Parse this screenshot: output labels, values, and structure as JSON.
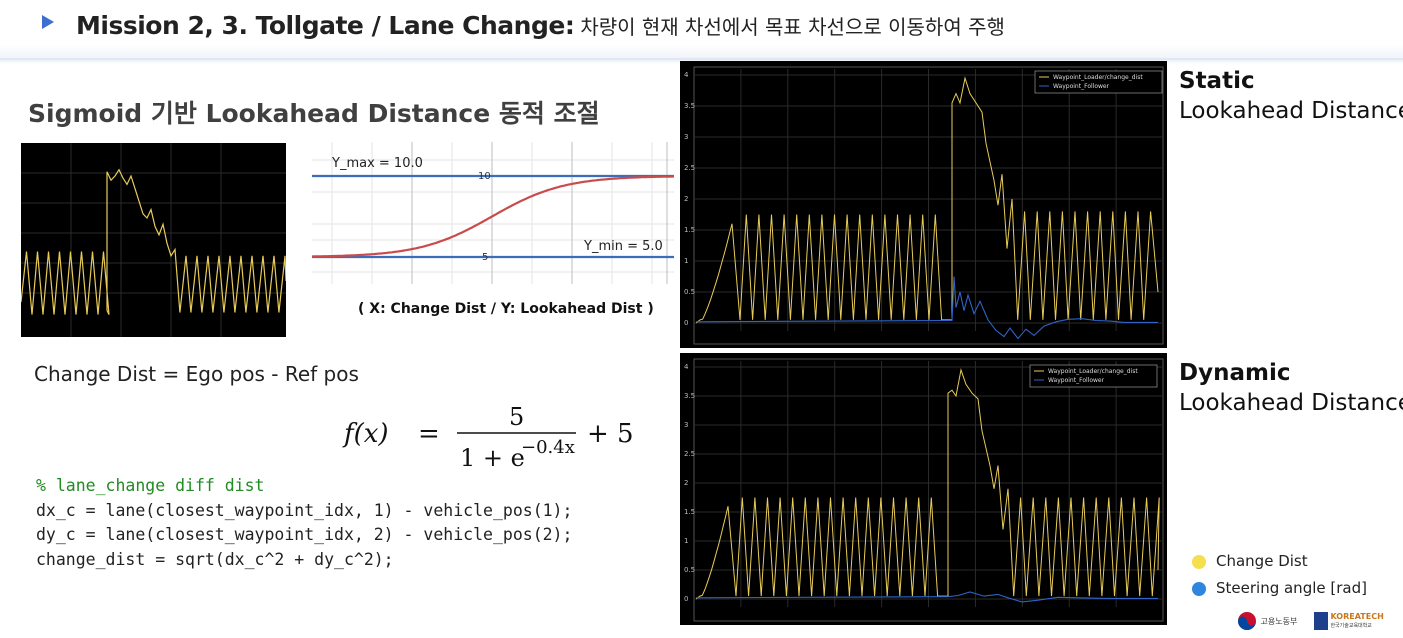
{
  "header": {
    "title_main": "Mission 2, 3. Tollgate / Lane Change:",
    "title_sub": "차량이 현재 차선에서 목표 차선으로 이동하여 주행"
  },
  "section_title": "Sigmoid 기반 Lookahead Distance 동적 조절",
  "sigmoid_plot": {
    "ymax_label": "Y_max = 10.0",
    "ymin_label": "Y_min = 5.0",
    "tick_top": "10",
    "tick_bottom": "5",
    "caption": "( X: Change Dist / Y: Lookahead Dist )"
  },
  "equation_text": "Change Dist = Ego pos - Ref pos",
  "formula": {
    "lhs": "f(x)",
    "equals": "=",
    "numerator": "5",
    "denominator_base": "1 + e",
    "exponent": "−0.4x",
    "plus": "+ 5"
  },
  "code": {
    "comment": "% lane_change diff dist",
    "line1": "dx_c = lane(closest_waypoint_idx, 1) - vehicle_pos(1);",
    "line2": "dy_c = lane(closest_waypoint_idx, 2) - vehicle_pos(2);",
    "line3": "change_dist = sqrt(dx_c^2 + dy_c^2);"
  },
  "plots": {
    "static_label_bold": "Static",
    "static_label": "Lookahead Distance",
    "dynamic_label_bold": "Dynamic",
    "dynamic_label": "Lookahead Distance",
    "legend_series1": "Waypoint_Loader/change_dist",
    "legend_series2": "Waypoint_Follower",
    "y_ticks": [
      "0",
      "0.5",
      "1",
      "1.5",
      "2",
      "2.5",
      "3",
      "3.5",
      "4"
    ]
  },
  "legend": {
    "item1": "Change Dist",
    "item2": "Steering angle [rad]",
    "color1": "#f5df4d",
    "color2": "#2e86de"
  },
  "logos": {
    "ministry": "고용노동부",
    "koreatech": "KOREATECH",
    "koreatech_sub": "한국기술교육대학교"
  },
  "colors": {
    "accent": "#3d6fd1",
    "trace_yellow": "#e8cc57",
    "trace_blue": "#2f63c9",
    "sigmoid_red": "#c94c4c",
    "hline_blue": "#3b6dbb"
  }
}
